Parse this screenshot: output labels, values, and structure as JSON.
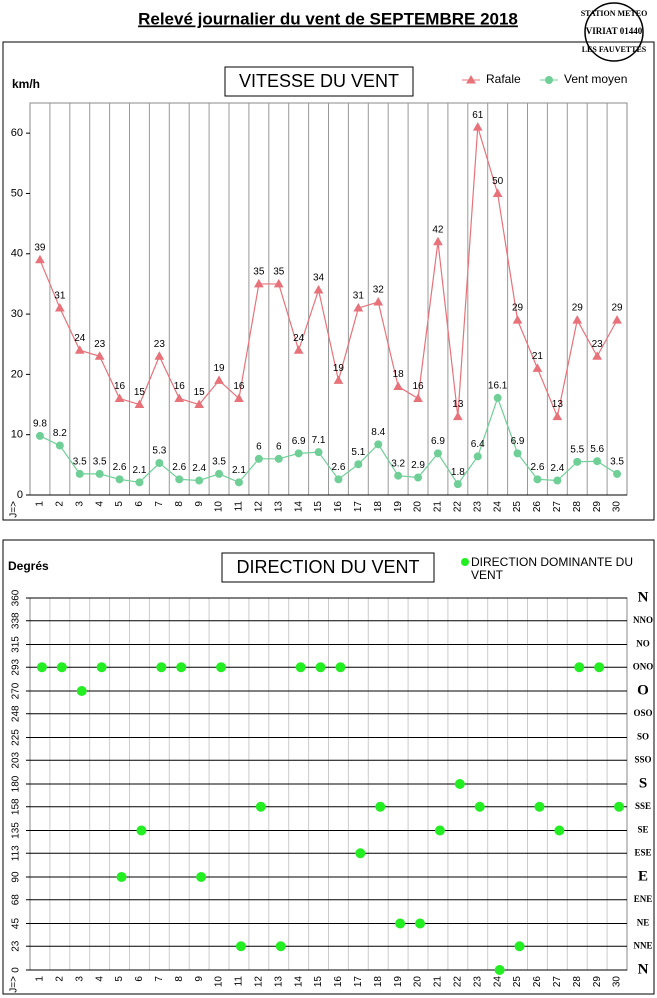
{
  "title": "Relevé journalier du vent de SEPTEMBRE 2018",
  "stamp": [
    "STATION METEO",
    "VIRIAT 01440",
    "LES FAUVETTES"
  ],
  "chart_data": [
    {
      "type": "line",
      "title": "VITESSE DU VENT",
      "y_label": "km/h",
      "x_label": "J=>",
      "categories": [
        "1",
        "2",
        "3",
        "4",
        "5",
        "6",
        "7",
        "8",
        "9",
        "10",
        "11",
        "12",
        "13",
        "14",
        "15",
        "16",
        "17",
        "18",
        "19",
        "20",
        "21",
        "22",
        "23",
        "24",
        "25",
        "26",
        "27",
        "28",
        "29",
        "30"
      ],
      "series": [
        {
          "name": "Rafale",
          "color": "#e8727a",
          "marker": "triangle",
          "values": [
            39,
            31,
            24,
            23,
            16,
            15,
            23,
            16,
            15,
            19,
            16,
            35,
            35,
            24,
            34,
            19,
            31,
            32,
            18,
            16,
            42,
            13,
            61,
            50,
            29,
            21,
            13,
            29,
            23,
            29
          ]
        },
        {
          "name": "Vent moyen",
          "color": "#6fcf97",
          "marker": "circle",
          "values": [
            9.8,
            8.2,
            3.5,
            3.5,
            2.6,
            2.1,
            5.3,
            2.6,
            2.4,
            3.5,
            2.1,
            6,
            6,
            6.9,
            7.1,
            2.6,
            5.1,
            8.4,
            3.2,
            2.9,
            6.9,
            1.8,
            6.4,
            16.1,
            6.9,
            2.6,
            2.4,
            5.5,
            5.6,
            3.5
          ]
        }
      ],
      "ylim": [
        0,
        65
      ],
      "yticks": [
        0,
        10,
        20,
        30,
        40,
        50,
        60
      ],
      "legend": "top-right"
    },
    {
      "type": "scatter",
      "title": "DIRECTION DU VENT",
      "y_label": "Degrés",
      "x_label": "J=>",
      "categories": [
        "1",
        "2",
        "3",
        "4",
        "5",
        "6",
        "7",
        "8",
        "9",
        "10",
        "11",
        "12",
        "13",
        "14",
        "15",
        "16",
        "17",
        "18",
        "19",
        "20",
        "21",
        "22",
        "23",
        "24",
        "25",
        "26",
        "27",
        "28",
        "29",
        "30"
      ],
      "series": [
        {
          "name": "DIRECTION DOMINANTE DU VENT",
          "color": "#22ee22",
          "values": [
            293,
            293,
            270,
            293,
            90,
            135,
            293,
            293,
            90,
            293,
            23,
            158,
            23,
            293,
            293,
            293,
            113,
            158,
            45,
            45,
            135,
            180,
            158,
            0,
            23,
            158,
            135,
            293,
            293,
            158
          ]
        }
      ],
      "ylim": [
        0,
        360
      ],
      "yticks": [
        0,
        23,
        45,
        68,
        90,
        113,
        135,
        158,
        180,
        203,
        225,
        248,
        270,
        293,
        315,
        338,
        360
      ],
      "direction_labels": [
        "N",
        "NNE",
        "NE",
        "ENE",
        "E",
        "ESE",
        "SE",
        "SSE",
        "S",
        "SSO",
        "SO",
        "OSO",
        "O",
        "ONO",
        "NO",
        "NNO",
        "N"
      ],
      "grid": true,
      "legend": "top-right"
    }
  ]
}
